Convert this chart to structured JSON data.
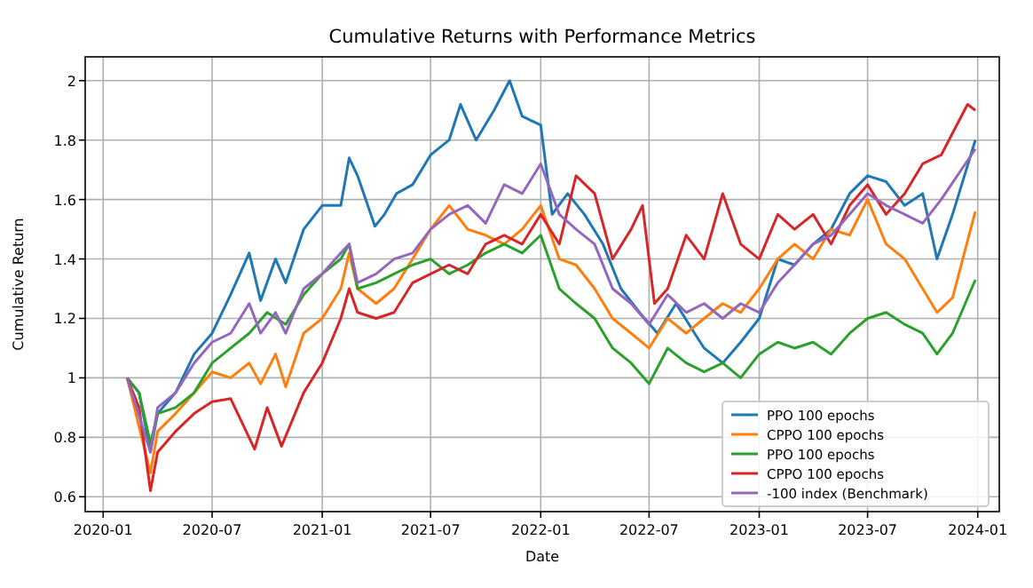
{
  "chart_data": {
    "type": "line",
    "title": "Cumulative Returns with Performance Metrics",
    "xlabel": "Date",
    "ylabel": "Cumulative Return",
    "xlim": [
      "2019-12-02",
      "2024-02-06"
    ],
    "xticks": [
      "2020-01",
      "2020-07",
      "2021-01",
      "2021-07",
      "2022-01",
      "2022-07",
      "2023-01",
      "2023-07",
      "2024-01"
    ],
    "ylim": [
      0.55,
      2.08
    ],
    "yticks": [
      0.6,
      0.8,
      1.0,
      1.2,
      1.4,
      1.6,
      1.8,
      2.0
    ],
    "grid": true,
    "legend": "bottom right",
    "line_style": "solid",
    "marker": "none",
    "series": [
      {
        "name": "PPO 100 epochs",
        "color": "#1f77b4",
        "x": [
          "2020-02-10",
          "2020-03-01",
          "2020-03-20",
          "2020-04-01",
          "2020-05-01",
          "2020-06-01",
          "2020-07-01",
          "2020-08-01",
          "2020-09-01",
          "2020-09-20",
          "2020-10-15",
          "2020-11-01",
          "2020-12-01",
          "2021-01-01",
          "2021-02-01",
          "2021-02-15",
          "2021-03-01",
          "2021-03-30",
          "2021-04-15",
          "2021-05-05",
          "2021-06-01",
          "2021-07-01",
          "2021-08-01",
          "2021-08-20",
          "2021-09-15",
          "2021-10-15",
          "2021-11-10",
          "2021-12-01",
          "2022-01-01",
          "2022-01-20",
          "2022-02-15",
          "2022-03-15",
          "2022-04-15",
          "2022-05-15",
          "2022-06-15",
          "2022-07-15",
          "2022-08-15",
          "2022-09-15",
          "2022-10-01",
          "2022-11-01",
          "2022-12-01",
          "2023-01-01",
          "2023-02-01",
          "2023-03-01",
          "2023-04-01",
          "2023-05-01",
          "2023-06-01",
          "2023-07-01",
          "2023-08-01",
          "2023-09-01",
          "2023-10-01",
          "2023-10-25",
          "2023-11-20",
          "2023-12-28"
        ],
        "values": [
          1.0,
          0.95,
          0.75,
          0.88,
          0.95,
          1.08,
          1.15,
          1.28,
          1.42,
          1.26,
          1.4,
          1.32,
          1.5,
          1.58,
          1.58,
          1.74,
          1.68,
          1.51,
          1.55,
          1.62,
          1.65,
          1.75,
          1.8,
          1.92,
          1.8,
          1.9,
          2.0,
          1.88,
          1.85,
          1.55,
          1.62,
          1.55,
          1.45,
          1.3,
          1.22,
          1.15,
          1.25,
          1.15,
          1.1,
          1.05,
          1.12,
          1.2,
          1.4,
          1.38,
          1.45,
          1.5,
          1.62,
          1.68,
          1.66,
          1.58,
          1.62,
          1.4,
          1.55,
          1.8
        ]
      },
      {
        "name": "CPPO 100 epochs",
        "color": "#ff7f0e",
        "x": [
          "2020-02-10",
          "2020-03-20",
          "2020-04-01",
          "2020-05-01",
          "2020-06-01",
          "2020-07-01",
          "2020-08-01",
          "2020-09-01",
          "2020-09-20",
          "2020-10-15",
          "2020-11-01",
          "2020-12-01",
          "2021-01-01",
          "2021-02-01",
          "2021-02-15",
          "2021-03-01",
          "2021-04-01",
          "2021-05-01",
          "2021-06-01",
          "2021-07-01",
          "2021-08-01",
          "2021-09-01",
          "2021-10-01",
          "2021-11-01",
          "2021-12-01",
          "2022-01-01",
          "2022-02-01",
          "2022-03-01",
          "2022-04-01",
          "2022-05-01",
          "2022-06-01",
          "2022-07-01",
          "2022-08-01",
          "2022-09-01",
          "2022-10-01",
          "2022-11-01",
          "2022-12-01",
          "2023-01-01",
          "2023-02-01",
          "2023-03-01",
          "2023-04-01",
          "2023-05-01",
          "2023-06-01",
          "2023-07-01",
          "2023-08-01",
          "2023-09-01",
          "2023-10-01",
          "2023-10-25",
          "2023-11-20",
          "2023-12-28"
        ],
        "values": [
          1.0,
          0.68,
          0.82,
          0.88,
          0.95,
          1.02,
          1.0,
          1.05,
          0.98,
          1.08,
          0.97,
          1.15,
          1.2,
          1.3,
          1.42,
          1.3,
          1.25,
          1.3,
          1.4,
          1.5,
          1.58,
          1.5,
          1.48,
          1.45,
          1.5,
          1.58,
          1.4,
          1.38,
          1.3,
          1.2,
          1.15,
          1.1,
          1.2,
          1.15,
          1.2,
          1.25,
          1.22,
          1.3,
          1.4,
          1.45,
          1.4,
          1.5,
          1.48,
          1.6,
          1.45,
          1.4,
          1.3,
          1.22,
          1.27,
          1.56
        ]
      },
      {
        "name": "PPO 100 epochs",
        "color": "#2ca02c",
        "x": [
          "2020-02-10",
          "2020-03-01",
          "2020-03-20",
          "2020-04-01",
          "2020-05-01",
          "2020-06-01",
          "2020-07-01",
          "2020-08-01",
          "2020-09-01",
          "2020-10-01",
          "2020-11-01",
          "2020-12-01",
          "2021-01-01",
          "2021-02-01",
          "2021-02-15",
          "2021-03-01",
          "2021-04-01",
          "2021-05-01",
          "2021-06-01",
          "2021-07-01",
          "2021-08-01",
          "2021-09-01",
          "2021-10-01",
          "2021-11-01",
          "2021-12-01",
          "2022-01-01",
          "2022-02-01",
          "2022-03-01",
          "2022-04-01",
          "2022-05-01",
          "2022-06-01",
          "2022-07-01",
          "2022-08-01",
          "2022-09-01",
          "2022-10-01",
          "2022-11-01",
          "2022-12-01",
          "2023-01-01",
          "2023-02-01",
          "2023-03-01",
          "2023-04-01",
          "2023-05-01",
          "2023-06-01",
          "2023-07-01",
          "2023-08-01",
          "2023-09-01",
          "2023-10-01",
          "2023-10-25",
          "2023-11-20",
          "2023-12-28"
        ],
        "values": [
          1.0,
          0.95,
          0.78,
          0.88,
          0.9,
          0.95,
          1.05,
          1.1,
          1.15,
          1.22,
          1.18,
          1.28,
          1.35,
          1.4,
          1.45,
          1.3,
          1.32,
          1.35,
          1.38,
          1.4,
          1.35,
          1.38,
          1.42,
          1.45,
          1.42,
          1.48,
          1.3,
          1.25,
          1.2,
          1.1,
          1.05,
          0.98,
          1.1,
          1.05,
          1.02,
          1.05,
          1.0,
          1.08,
          1.12,
          1.1,
          1.12,
          1.08,
          1.15,
          1.2,
          1.22,
          1.18,
          1.15,
          1.08,
          1.15,
          1.33
        ]
      },
      {
        "name": "CPPO 100 epochs",
        "color": "#d62728",
        "x": [
          "2020-02-10",
          "2020-03-01",
          "2020-03-20",
          "2020-04-01",
          "2020-05-01",
          "2020-06-01",
          "2020-07-01",
          "2020-08-01",
          "2020-09-10",
          "2020-10-01",
          "2020-10-25",
          "2020-12-01",
          "2021-01-01",
          "2021-02-01",
          "2021-02-15",
          "2021-03-01",
          "2021-04-01",
          "2021-05-01",
          "2021-06-01",
          "2021-07-01",
          "2021-08-01",
          "2021-09-01",
          "2021-10-01",
          "2021-11-01",
          "2021-12-01",
          "2022-01-01",
          "2022-02-01",
          "2022-03-01",
          "2022-04-01",
          "2022-05-01",
          "2022-06-01",
          "2022-06-20",
          "2022-07-10",
          "2022-08-01",
          "2022-09-01",
          "2022-10-01",
          "2022-11-01",
          "2022-12-01",
          "2023-01-01",
          "2023-02-01",
          "2023-03-01",
          "2023-04-01",
          "2023-05-01",
          "2023-06-01",
          "2023-07-01",
          "2023-08-01",
          "2023-09-01",
          "2023-10-01",
          "2023-11-01",
          "2023-12-15",
          "2023-12-28"
        ],
        "values": [
          1.0,
          0.9,
          0.62,
          0.75,
          0.82,
          0.88,
          0.92,
          0.93,
          0.76,
          0.9,
          0.77,
          0.95,
          1.05,
          1.2,
          1.3,
          1.22,
          1.2,
          1.22,
          1.32,
          1.35,
          1.38,
          1.35,
          1.45,
          1.48,
          1.45,
          1.55,
          1.45,
          1.68,
          1.62,
          1.4,
          1.5,
          1.58,
          1.25,
          1.3,
          1.48,
          1.4,
          1.62,
          1.45,
          1.4,
          1.55,
          1.5,
          1.55,
          1.45,
          1.58,
          1.65,
          1.55,
          1.62,
          1.72,
          1.75,
          1.92,
          1.9
        ]
      },
      {
        "name": "-100 index (Benchmark)",
        "color": "#9467bd",
        "x": [
          "2020-02-10",
          "2020-03-20",
          "2020-04-01",
          "2020-05-01",
          "2020-06-01",
          "2020-07-01",
          "2020-08-01",
          "2020-09-01",
          "2020-09-20",
          "2020-10-15",
          "2020-11-01",
          "2020-12-01",
          "2021-01-01",
          "2021-02-01",
          "2021-02-15",
          "2021-03-01",
          "2021-04-01",
          "2021-05-01",
          "2021-06-01",
          "2021-07-01",
          "2021-08-01",
          "2021-09-01",
          "2021-10-01",
          "2021-11-01",
          "2021-12-01",
          "2022-01-01",
          "2022-02-01",
          "2022-03-01",
          "2022-04-01",
          "2022-05-01",
          "2022-06-01",
          "2022-07-01",
          "2022-08-01",
          "2022-09-01",
          "2022-10-01",
          "2022-11-01",
          "2022-12-01",
          "2023-01-01",
          "2023-02-01",
          "2023-03-01",
          "2023-04-01",
          "2023-05-01",
          "2023-06-01",
          "2023-07-01",
          "2023-08-01",
          "2023-09-01",
          "2023-10-01",
          "2023-11-01",
          "2023-12-28"
        ],
        "values": [
          1.0,
          0.75,
          0.9,
          0.95,
          1.05,
          1.12,
          1.15,
          1.25,
          1.15,
          1.22,
          1.15,
          1.3,
          1.35,
          1.42,
          1.45,
          1.32,
          1.35,
          1.4,
          1.42,
          1.5,
          1.55,
          1.58,
          1.52,
          1.65,
          1.62,
          1.72,
          1.55,
          1.5,
          1.45,
          1.3,
          1.25,
          1.18,
          1.28,
          1.22,
          1.25,
          1.2,
          1.25,
          1.22,
          1.32,
          1.38,
          1.45,
          1.48,
          1.55,
          1.62,
          1.58,
          1.55,
          1.52,
          1.6,
          1.77
        ]
      }
    ]
  }
}
